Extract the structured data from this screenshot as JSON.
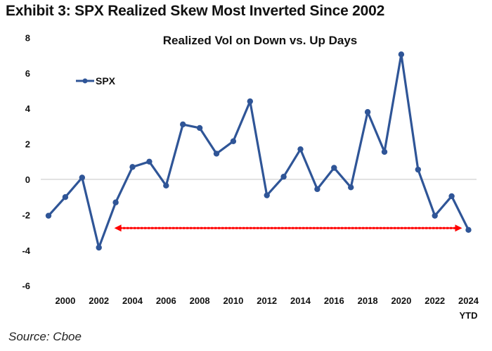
{
  "exhibit_title": "Exhibit 3: SPX Realized Skew Most Inverted Since 2002",
  "source": "Source: Cboe",
  "colors": {
    "series": "#2f5597",
    "annotation_arrow": "#ff0000",
    "zero_line": "#d9d9d9"
  },
  "chart_data": {
    "type": "line",
    "title": "Realized Vol on Down vs. Up Days",
    "xlabel": "",
    "ylabel": "",
    "ylim": [
      -6,
      8
    ],
    "yticks": [
      8,
      6,
      4,
      2,
      0,
      -2,
      -4,
      -6
    ],
    "x": [
      1999,
      2000,
      2001,
      2002,
      2003,
      2004,
      2005,
      2006,
      2007,
      2008,
      2009,
      2010,
      2011,
      2012,
      2013,
      2014,
      2015,
      2016,
      2017,
      2018,
      2019,
      2020,
      2021,
      2022,
      2023,
      2024
    ],
    "xticks": [
      {
        "x": 2000,
        "label": "2000"
      },
      {
        "x": 2002,
        "label": "2002"
      },
      {
        "x": 2004,
        "label": "2004"
      },
      {
        "x": 2006,
        "label": "2006"
      },
      {
        "x": 2008,
        "label": "2008"
      },
      {
        "x": 2010,
        "label": "2010"
      },
      {
        "x": 2012,
        "label": "2012"
      },
      {
        "x": 2014,
        "label": "2014"
      },
      {
        "x": 2016,
        "label": "2016"
      },
      {
        "x": 2018,
        "label": "2018"
      },
      {
        "x": 2020,
        "label": "2020"
      },
      {
        "x": 2022,
        "label": "2022"
      },
      {
        "x": 2024,
        "label": "2024",
        "sublabel": "YTD"
      }
    ],
    "series": [
      {
        "name": "SPX",
        "values": [
          -2.05,
          -1.0,
          0.1,
          -3.85,
          -1.3,
          0.7,
          1.0,
          -0.35,
          3.1,
          2.9,
          1.45,
          2.15,
          4.4,
          -0.9,
          0.15,
          1.7,
          -0.55,
          0.65,
          -0.45,
          3.8,
          1.55,
          7.05,
          0.55,
          -2.05,
          -0.95,
          -2.85
        ]
      }
    ],
    "legend": {
      "entries": [
        "SPX"
      ],
      "placement": "top-left"
    },
    "grid": false,
    "zero_line": true,
    "annotations": [
      {
        "type": "double-arrow-dotted",
        "from_x": 2003,
        "to_x": 2024,
        "y": -2.75,
        "color": "#ff0000"
      }
    ]
  }
}
